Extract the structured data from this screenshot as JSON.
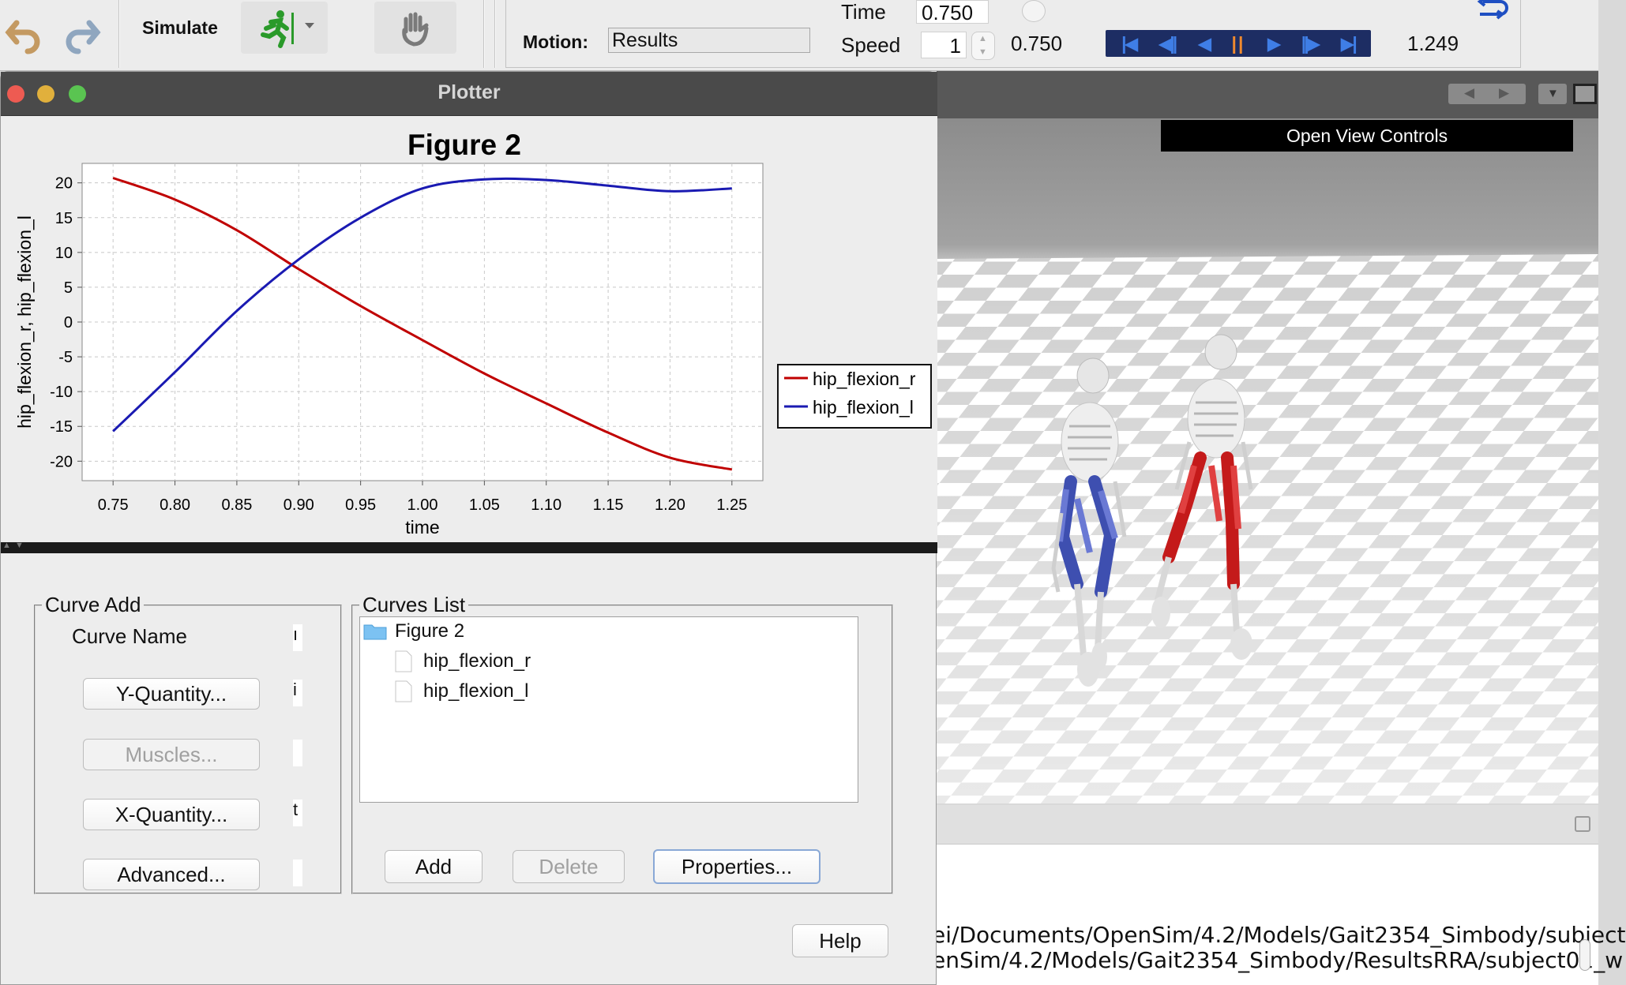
{
  "toolbar": {
    "simulate_label": "Simulate",
    "motion_label": "Motion:",
    "motion_value": "Results",
    "time_label": "Time",
    "time_value": "0.750",
    "speed_label": "Speed",
    "speed_value": "1",
    "current_time": "0.750",
    "end_time": "1.249"
  },
  "plotter": {
    "window_title": "Plotter",
    "figure_title": "Figure 2"
  },
  "chart_data": {
    "type": "line",
    "title": "Figure 2",
    "xlabel": "time",
    "ylabel": "hip_flexion_r, hip_flexion_l",
    "xlim": [
      0.725,
      1.275
    ],
    "ylim": [
      -22.8,
      22.8
    ],
    "x_ticks": [
      "0.75",
      "0.80",
      "0.85",
      "0.90",
      "0.95",
      "1.00",
      "1.05",
      "1.10",
      "1.15",
      "1.20",
      "1.25"
    ],
    "y_ticks": [
      "20",
      "15",
      "10",
      "5",
      "0",
      "-5",
      "-10",
      "-15",
      "-20"
    ],
    "grid": true,
    "legend_position": "right",
    "x": [
      0.75,
      0.8,
      0.85,
      0.9,
      0.95,
      1.0,
      1.05,
      1.1,
      1.15,
      1.2,
      1.25
    ],
    "series": [
      {
        "name": "hip_flexion_r",
        "color": "#c00000",
        "values": [
          20.7,
          17.6,
          13.2,
          7.6,
          2.3,
          -2.6,
          -7.4,
          -11.7,
          -15.9,
          -19.5,
          -21.2
        ]
      },
      {
        "name": "hip_flexion_l",
        "color": "#1a1ab2",
        "values": [
          -15.7,
          -7.2,
          1.6,
          9.0,
          15.0,
          19.2,
          20.5,
          20.4,
          19.6,
          18.8,
          19.2
        ]
      }
    ]
  },
  "curve_add": {
    "legend": "Curve Add",
    "curve_name_label": "Curve Name",
    "y_quantity_button": "Y-Quantity...",
    "muscles_button": "Muscles...",
    "x_quantity_button": "X-Quantity...",
    "advanced_button": "Advanced...",
    "curve_name_value": "ı",
    "y_quantity_value": "i",
    "x_quantity_value": "t"
  },
  "curves_list": {
    "legend": "Curves List",
    "root": "Figure 2",
    "items": [
      "hip_flexion_r",
      "hip_flexion_l"
    ],
    "add_button": "Add",
    "delete_button": "Delete",
    "properties_button": "Properties..."
  },
  "help_button": "Help",
  "view": {
    "controls_button": "Open View Controls"
  },
  "console": {
    "lines": [
      "ei/Documents/OpenSim/4.2/Models/Gait2354_Simbody/subject",
      "enSim/4.2/Models/Gait2354_Simbody/ResultsRRA/subject01_w"
    ]
  }
}
